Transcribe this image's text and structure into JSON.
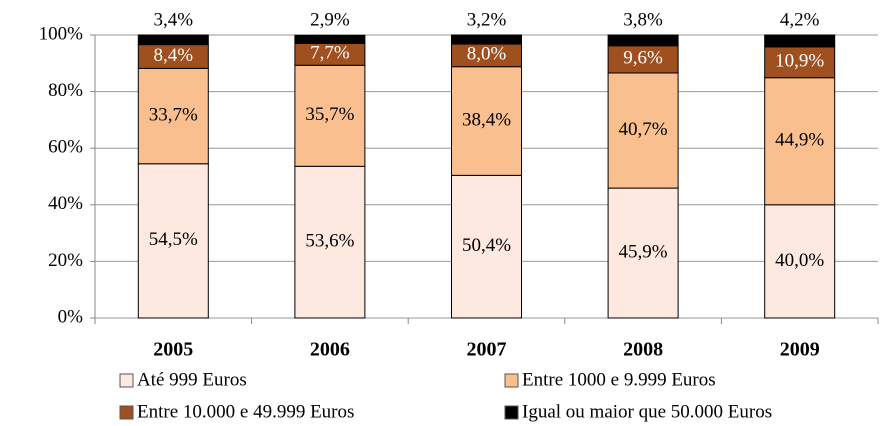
{
  "chart_data": {
    "type": "stacked-bar",
    "categories": [
      "2005",
      "2006",
      "2007",
      "2008",
      "2009"
    ],
    "series": [
      {
        "name": "Até 999 Euros",
        "color": "#fde9e0",
        "values": [
          54.5,
          53.6,
          50.4,
          45.9,
          40.0
        ],
        "value_labels": [
          "54,5%",
          "53,6%",
          "50,4%",
          "45,9%",
          "40,0%"
        ]
      },
      {
        "name": "Entre 1000 e 9.999 Euros",
        "color": "#f9bf8f",
        "values": [
          33.7,
          35.7,
          38.4,
          40.7,
          44.9
        ],
        "value_labels": [
          "33,7%",
          "35,7%",
          "38,4%",
          "40,7%",
          "44,9%"
        ]
      },
      {
        "name": "Entre 10.000 e 49.999 Euros",
        "color": "#a0501f",
        "values": [
          8.4,
          7.7,
          8.0,
          9.6,
          10.9
        ],
        "value_labels": [
          "8,4%",
          "7,7%",
          "8,0%",
          "9,6%",
          "10,9%"
        ]
      },
      {
        "name": "Igual ou maior que 50.000 Euros",
        "color": "#000000",
        "values": [
          3.4,
          2.9,
          3.2,
          3.8,
          4.2
        ],
        "value_labels": [
          "3,4%",
          "2,9%",
          "3,2%",
          "3,8%",
          "4,2%"
        ]
      }
    ],
    "ylim": [
      0,
      100
    ],
    "yticks": [
      {
        "value": 0,
        "label": "0%"
      },
      {
        "value": 20,
        "label": "20%"
      },
      {
        "value": 40,
        "label": "40%"
      },
      {
        "value": 60,
        "label": "60%"
      },
      {
        "value": 80,
        "label": "80%"
      },
      {
        "value": 100,
        "label": "100%"
      }
    ],
    "grid": true
  }
}
